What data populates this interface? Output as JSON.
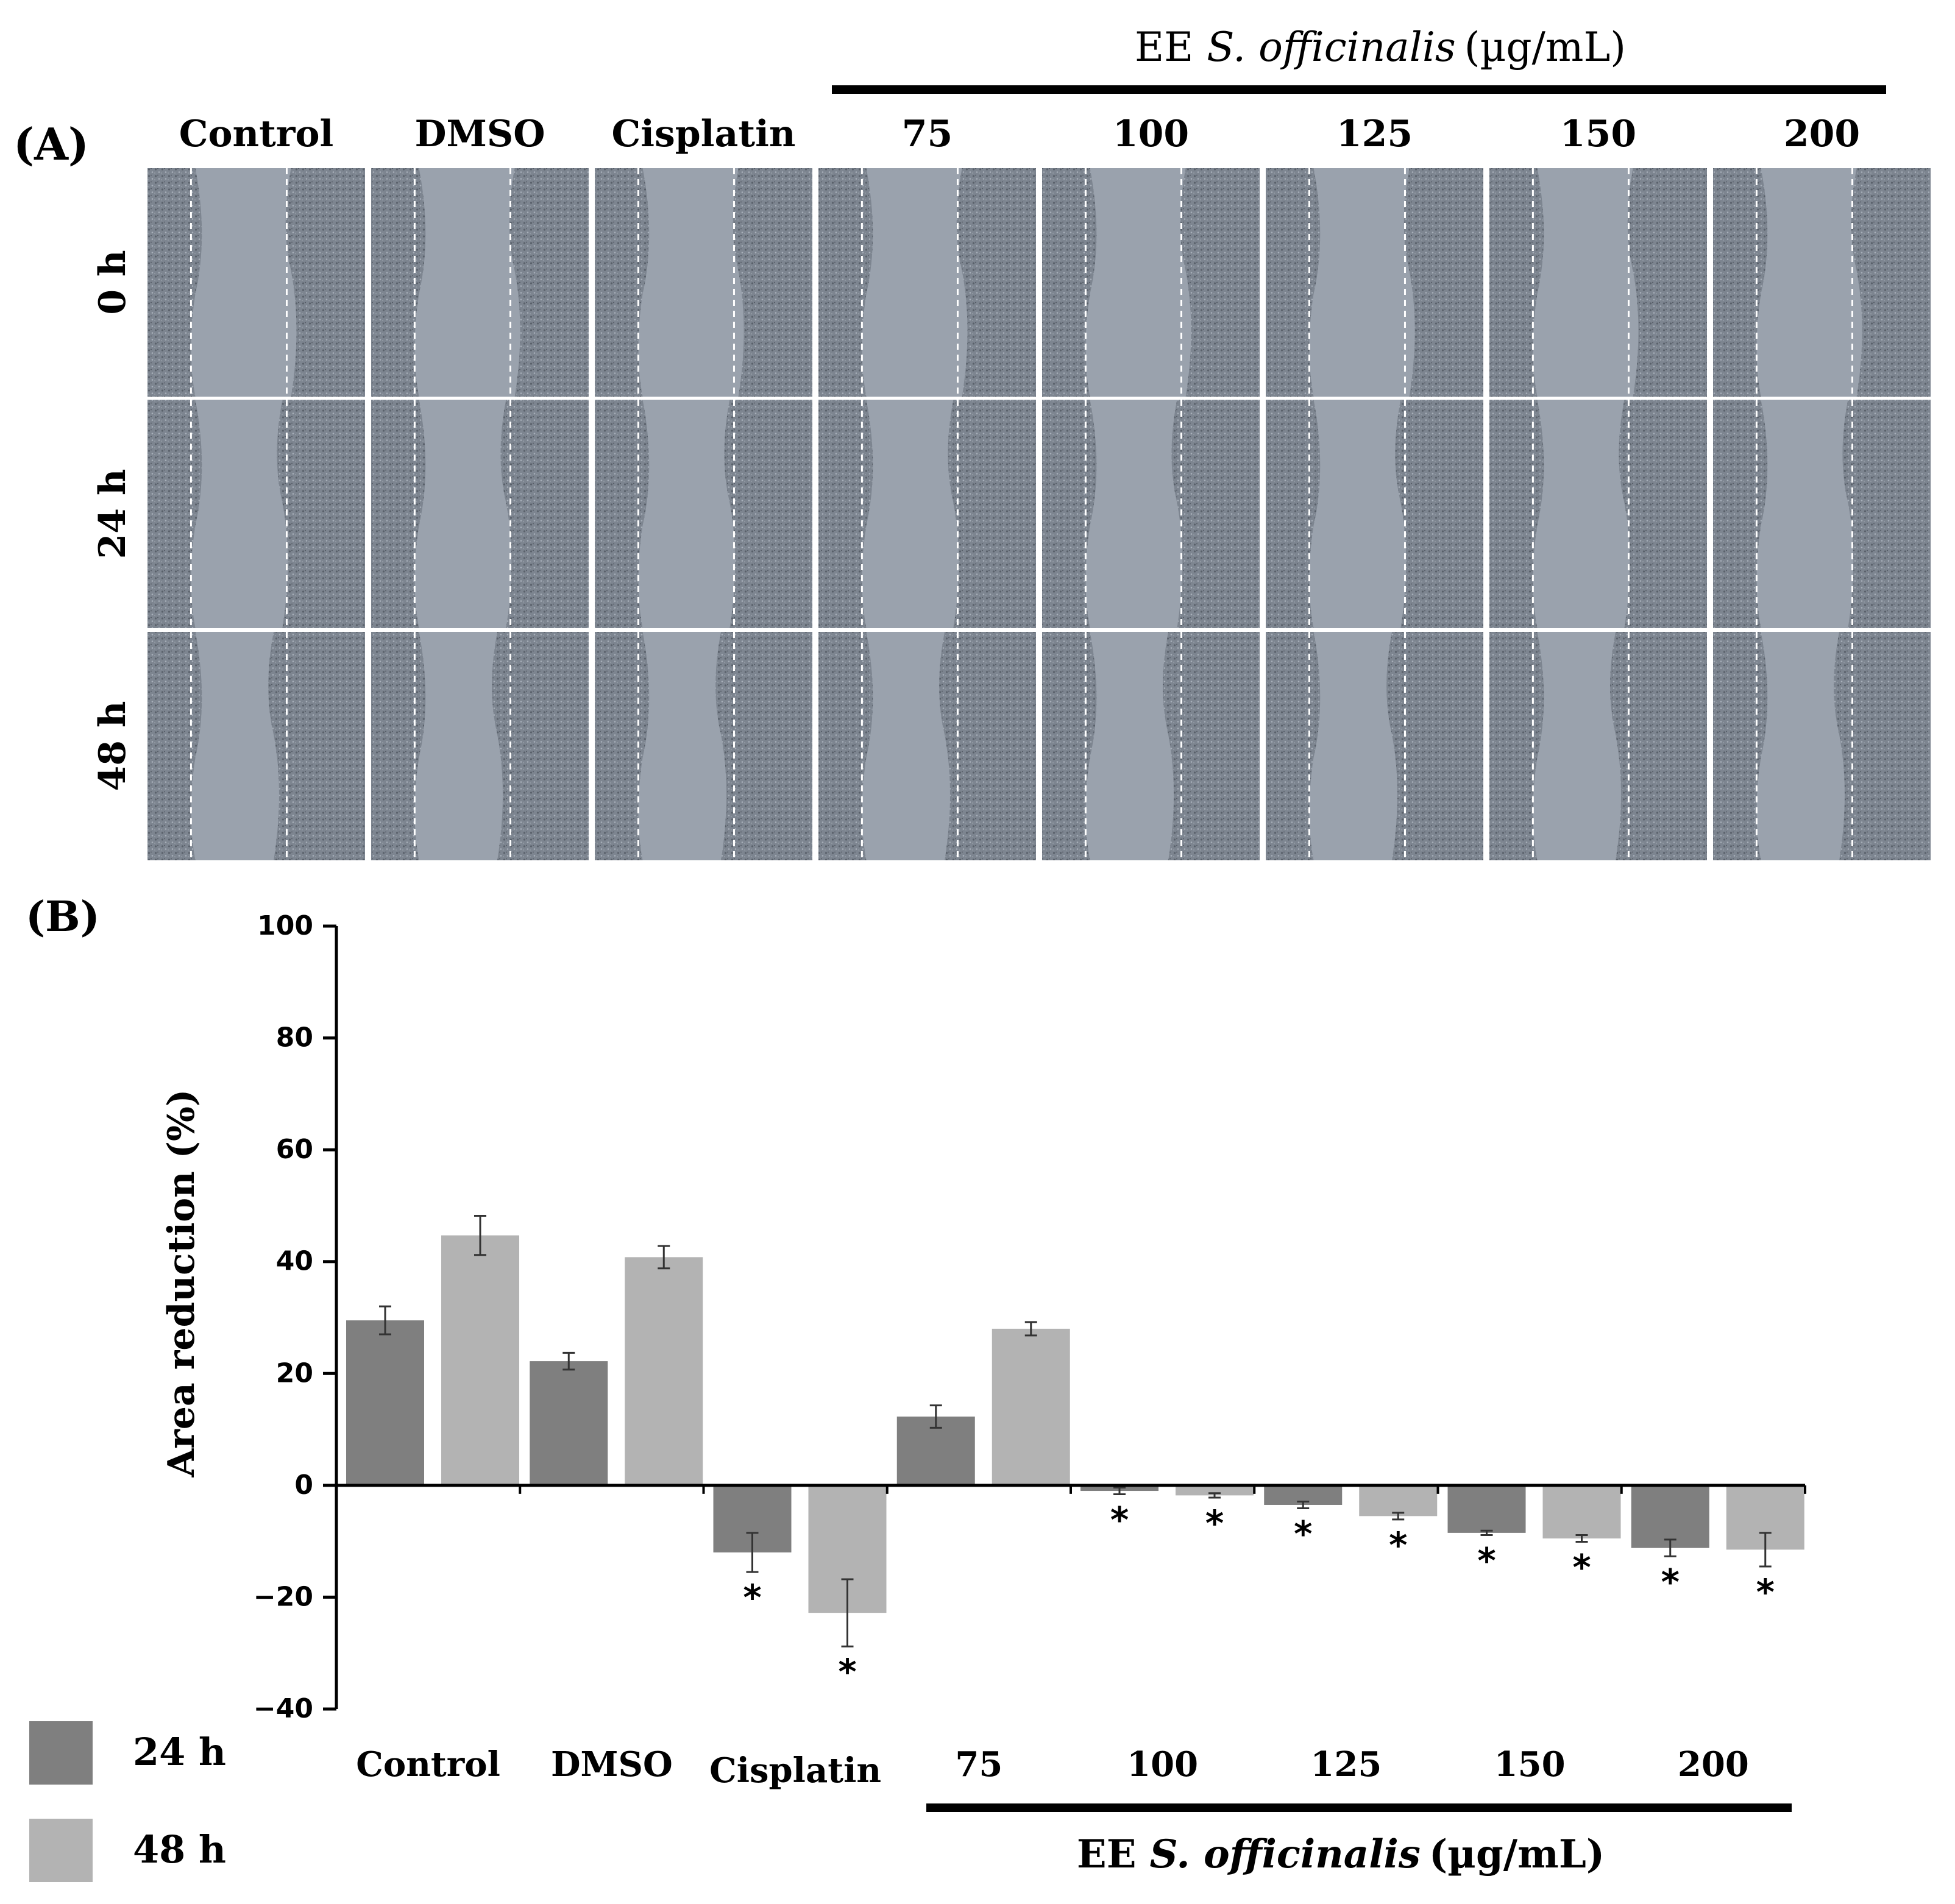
{
  "panel_a": {
    "label": "(A)",
    "group_header": {
      "prefix": "EE",
      "species": "S. officinalis",
      "unit": "(µg/mL)"
    },
    "columns": [
      "Control",
      "DMSO",
      "Cisplatin",
      "75",
      "100",
      "125",
      "150",
      "200"
    ],
    "rows": [
      "0 h",
      "24 h",
      "48 h"
    ]
  },
  "panel_b": {
    "label": "(B)",
    "group_header": {
      "prefix": "EE",
      "species": "S. officinalis",
      "unit": "(µg/mL)"
    }
  },
  "legend": [
    {
      "label": "24 h",
      "color": "#7f7f7f"
    },
    {
      "label": "48 h",
      "color": "#b3b3b3"
    }
  ],
  "colors": {
    "series_24h": "#7f7f7f",
    "series_48h": "#b3b3b3",
    "micrograph": "#9aa2ad"
  },
  "chart_data": {
    "type": "bar",
    "title": "",
    "xlabel": "",
    "ylabel": "Area reduction (%)",
    "ylim": [
      -40,
      100
    ],
    "yticks": [
      -40,
      -20,
      0,
      20,
      40,
      60,
      80,
      100
    ],
    "categories": [
      "Control",
      "DMSO",
      "Cisplatin",
      "75",
      "100",
      "125",
      "150",
      "200"
    ],
    "series": [
      {
        "name": "24 h",
        "values": [
          29.5,
          22.2,
          -12.0,
          12.3,
          -1.0,
          -3.5,
          -8.5,
          -11.2
        ],
        "errors": [
          2.5,
          1.5,
          3.5,
          2.0,
          0.6,
          0.6,
          0.4,
          1.5
        ],
        "significant": [
          false,
          false,
          true,
          false,
          true,
          true,
          true,
          true
        ]
      },
      {
        "name": "48 h",
        "values": [
          44.7,
          40.8,
          -22.8,
          28.0,
          -1.8,
          -5.5,
          -9.5,
          -11.5
        ],
        "errors": [
          3.5,
          2.0,
          6.0,
          1.2,
          0.4,
          0.6,
          0.6,
          3.0
        ],
        "significant": [
          false,
          false,
          true,
          false,
          true,
          true,
          true,
          true
        ]
      }
    ],
    "significance_marker": "*"
  }
}
